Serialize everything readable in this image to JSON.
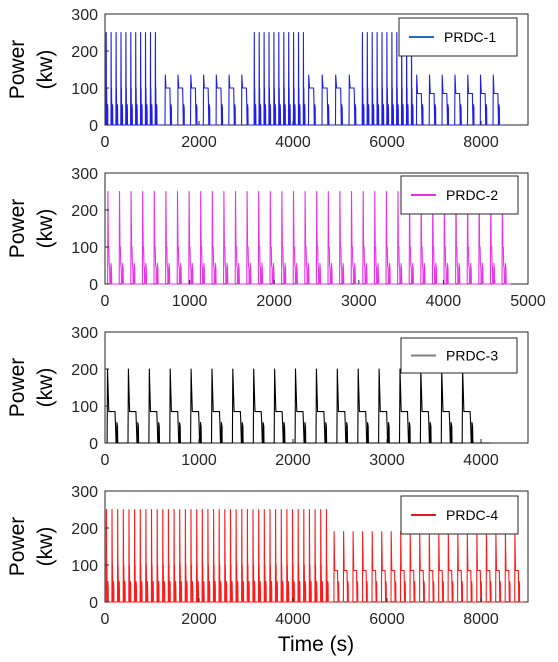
{
  "figure": {
    "xlabel": "Time (s)"
  },
  "chart_data": [
    {
      "type": "line",
      "ylabel_top": "Power",
      "ylabel_bottom": "(kw)",
      "legend": "PRDC-1",
      "color": "#1f1fe6",
      "legend_color": "#1f6fbf",
      "xlim": [
        0,
        9000
      ],
      "ylim": [
        0,
        300
      ],
      "xticks": [
        0,
        2000,
        4000,
        6000,
        8000
      ],
      "yticks": [
        0,
        100,
        200,
        300
      ],
      "x_end": 8500,
      "segments": [
        {
          "start": 0,
          "end": 1150,
          "pattern": "spike",
          "n": 11,
          "peak": 250
        },
        {
          "start": 1250,
          "end": 3150,
          "pattern": "plateau",
          "n": 7,
          "peak": 135,
          "plateau": 100
        },
        {
          "start": 3150,
          "end": 4300,
          "pattern": "spike",
          "n": 11,
          "peak": 250
        },
        {
          "start": 4300,
          "end": 5450,
          "pattern": "plateau",
          "n": 4,
          "peak": 135,
          "plateau": 100
        },
        {
          "start": 5450,
          "end": 6600,
          "pattern": "spike",
          "n": 11,
          "peak": 250
        },
        {
          "start": 6600,
          "end": 8500,
          "pattern": "plateau",
          "n": 7,
          "peak": 135,
          "plateau": 85
        }
      ]
    },
    {
      "type": "line",
      "ylabel_top": "Power",
      "ylabel_bottom": "(kw)",
      "legend": "PRDC-2",
      "color": "#e633e6",
      "legend_color": "#e633e6",
      "xlim": [
        0,
        5000
      ],
      "ylim": [
        0,
        300
      ],
      "xticks": [
        0,
        1000,
        2000,
        3000,
        4000,
        5000
      ],
      "yticks": [
        0,
        100,
        200,
        300
      ],
      "x_end": 4800,
      "segments": [
        {
          "start": 0,
          "end": 4800,
          "pattern": "spike",
          "n": 35,
          "peak": 250
        }
      ]
    },
    {
      "type": "line",
      "ylabel_top": "Power",
      "ylabel_bottom": "(kw)",
      "legend": "PRDC-3",
      "color": "#000000",
      "legend_color": "#808080",
      "xlim": [
        0,
        4500
      ],
      "ylim": [
        0,
        300
      ],
      "xticks": [
        0,
        1000,
        2000,
        3000,
        4000
      ],
      "yticks": [
        0,
        100,
        200,
        300
      ],
      "x_end": 4100,
      "segments": [
        {
          "start": 0,
          "end": 4000,
          "pattern": "plateau",
          "n": 18,
          "peak": 200,
          "plateau": 85
        }
      ]
    },
    {
      "type": "line",
      "ylabel_top": "Power",
      "ylabel_bottom": "(kw)",
      "legend": "PRDC-4",
      "color": "#ff1a1a",
      "legend_color": "#e61a1a",
      "xlim": [
        0,
        9000
      ],
      "ylim": [
        0,
        300
      ],
      "xticks": [
        0,
        2000,
        4000,
        6000,
        8000
      ],
      "yticks": [
        0,
        100,
        200,
        300
      ],
      "x_end": 8900,
      "segments": [
        {
          "start": 0,
          "end": 4800,
          "pattern": "spike",
          "n": 40,
          "peak": 250
        },
        {
          "start": 4850,
          "end": 8900,
          "pattern": "plateau",
          "n": 20,
          "peak": 190,
          "plateau": 85
        }
      ]
    }
  ]
}
